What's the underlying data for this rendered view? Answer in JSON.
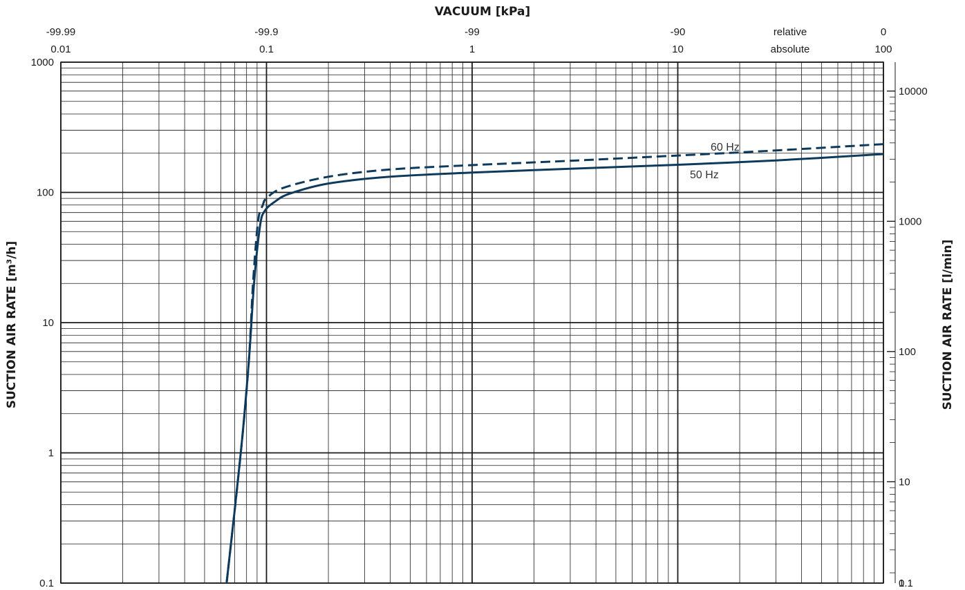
{
  "chart_data": {
    "type": "line",
    "title": "VACUUM  [kPa]",
    "ylabel_left": "SUCTION AIR RATE  [m³/h]",
    "ylabel_right": "SUCTION AIR RATE  [l/min]",
    "x_scale": "log",
    "y_scale": "log",
    "xlim": [
      0.01,
      100
    ],
    "ylim": [
      0.1,
      1000
    ],
    "grid": true,
    "x_ticks_absolute": [
      {
        "value": 0.01,
        "label": "0.01"
      },
      {
        "value": 0.1,
        "label": "0.1"
      },
      {
        "value": 1,
        "label": "1"
      },
      {
        "value": 10,
        "label": "10"
      },
      {
        "value": 100,
        "label": "100"
      }
    ],
    "x_ticks_relative": [
      {
        "value": 0.01,
        "label": "-99.99"
      },
      {
        "value": 0.1,
        "label": "-99.9"
      },
      {
        "value": 1,
        "label": "-99"
      },
      {
        "value": 10,
        "label": "-90"
      },
      {
        "value": 100,
        "label": "0"
      }
    ],
    "x_row_labels": {
      "relative": "relative",
      "absolute": "absolute"
    },
    "y_ticks_left": [
      {
        "value": 0.1,
        "label": "0.1"
      },
      {
        "value": 1,
        "label": "1"
      },
      {
        "value": 10,
        "label": "10"
      },
      {
        "value": 100,
        "label": "100"
      },
      {
        "value": 1000,
        "label": "1000"
      }
    ],
    "y_ticks_right": [
      {
        "value": 0.1,
        "label": "0.1"
      },
      {
        "value": 1,
        "label": "1"
      },
      {
        "value": 10,
        "label": "10"
      },
      {
        "value": 100,
        "label": "100"
      },
      {
        "value": 1000,
        "label": "1000"
      },
      {
        "value": 10000,
        "label": "10000"
      }
    ],
    "series": [
      {
        "name": "50 Hz",
        "style": "solid",
        "color": "#0d3a5c",
        "x": [
          0.064,
          0.075,
          0.082,
          0.087,
          0.093,
          0.098,
          0.11,
          0.13,
          0.2,
          0.4,
          1,
          3,
          10,
          30,
          100
        ],
        "y": [
          0.1,
          1,
          5,
          20,
          55,
          72,
          85,
          98,
          117,
          132,
          142,
          152,
          163,
          176,
          197
        ]
      },
      {
        "name": "60 Hz",
        "style": "dashed",
        "color": "#0d3a5c",
        "x": [
          0.064,
          0.075,
          0.082,
          0.086,
          0.091,
          0.096,
          0.1,
          0.12,
          0.2,
          0.4,
          1,
          3,
          10,
          30,
          100
        ],
        "y": [
          0.1,
          1,
          5,
          20,
          60,
          80,
          90,
          108,
          132,
          150,
          162,
          175,
          192,
          210,
          235
        ]
      }
    ]
  }
}
